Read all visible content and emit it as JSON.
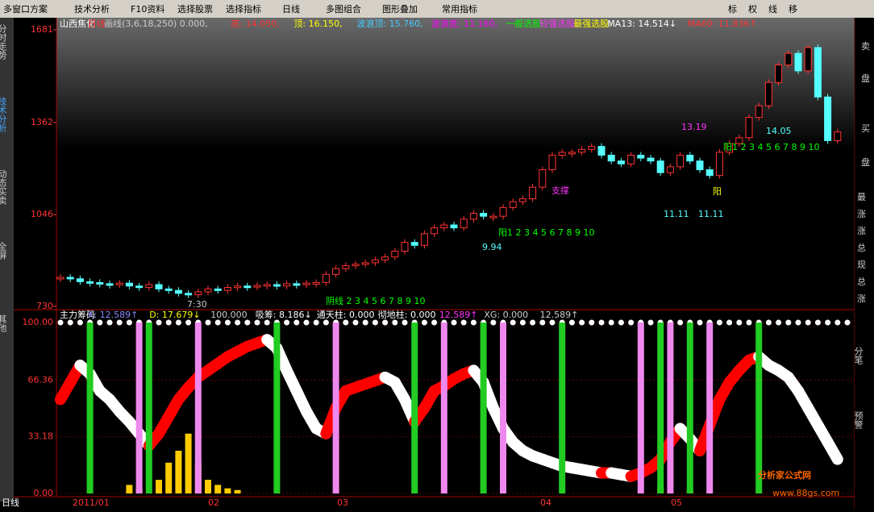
{
  "toolbar": {
    "left": [
      "多窗口方案",
      "技术分析",
      "F10资料",
      "选择股票",
      "选择指标",
      "日线",
      "多图组合",
      "图形叠加",
      "常用指标"
    ],
    "right": [
      "标",
      "权",
      "线",
      "移"
    ]
  },
  "left_tabs": [
    "分时走势",
    "技术分析",
    "动态买卖",
    "全屏",
    "其他"
  ],
  "right_panel": {
    "top": [
      "卖",
      "盘",
      "买",
      "盘"
    ],
    "stats": [
      "最",
      "涨",
      "涨",
      "总",
      "现",
      "总",
      "涨"
    ],
    "tabs": [
      "分笔",
      "预警"
    ]
  },
  "info": [
    "山西焦化",
    "日线",
    "画线(3,6,18,250) 0.000,",
    "底: 14.050,",
    "顶: 16.150,",
    "波浪顶: 15.760,",
    "波浪底: 11.160,",
    "一般选股:",
    "较强选股:",
    "最强选股:",
    "MA13: 14.514↓",
    "MA60: 11.836↑"
  ],
  "price_chart": {
    "ylim": [
      730,
      1681
    ],
    "yticks": [
      1681,
      1362,
      1046,
      730
    ],
    "closes": [
      830,
      825,
      815,
      812,
      808,
      805,
      810,
      800,
      795,
      805,
      790,
      785,
      775,
      770,
      780,
      790,
      785,
      795,
      800,
      798,
      802,
      805,
      800,
      808,
      806,
      810,
      812,
      840,
      860,
      870,
      875,
      880,
      890,
      900,
      920,
      950,
      940,
      980,
      1000,
      1010,
      1000,
      1030,
      1050,
      1040,
      1040,
      1070,
      1090,
      1100,
      1140,
      1200,
      1250,
      1260,
      1260,
      1270,
      1280,
      1250,
      1230,
      1220,
      1250,
      1240,
      1230,
      1190,
      1210,
      1250,
      1230,
      1200,
      1180,
      1260,
      1290,
      1310,
      1380,
      1420,
      1500,
      1560,
      1600,
      1540,
      1620,
      1450,
      1300,
      1330
    ],
    "annotations": [
      "13.19",
      "14.05",
      "11.11",
      "11.11",
      "9.94",
      "支撑",
      "阳1 2 3 4 5 6 7 8 9 10",
      "阳1 2 3 4 5 6 7 8 9 10",
      "阳",
      "阴线 2 3 4 5 6 7 8 9 10",
      "7:30"
    ]
  },
  "indicator": {
    "labels": [
      "主力筹码",
      "K: 12.589↑",
      "D: 17.679↓",
      "100.000",
      "吸筹: 8.186↓",
      "通天柱: 0.000",
      "彻地柱: 0.000",
      "12.589↑",
      "XG: 0.000",
      "12.589↑"
    ],
    "ylim": [
      0,
      100
    ],
    "yticks": [
      {
        "value": 100,
        "label": "100.00"
      },
      {
        "value": 66.36,
        "label": "66.36"
      },
      {
        "value": 33.18,
        "label": "33.18"
      },
      {
        "value": 0,
        "label": "0.00"
      }
    ],
    "ribbon": [
      55,
      65,
      75,
      70,
      60,
      55,
      48,
      42,
      35,
      28,
      35,
      45,
      55,
      62,
      68,
      72,
      76,
      80,
      83,
      86,
      88,
      90,
      85,
      72,
      60,
      48,
      38,
      35,
      50,
      60,
      62,
      64,
      66,
      68,
      65,
      55,
      42,
      50,
      60,
      63,
      67,
      70,
      72,
      65,
      50,
      38,
      30,
      25,
      22,
      20,
      18,
      16,
      15,
      14,
      13,
      12,
      12,
      11,
      10,
      12,
      15,
      20,
      30,
      38,
      32,
      25,
      40,
      55,
      65,
      72,
      78,
      80,
      75,
      72,
      68,
      60,
      50,
      40,
      30,
      20
    ],
    "yellow": [
      0,
      0,
      0,
      0,
      0,
      0,
      0,
      5,
      3,
      0,
      8,
      18,
      25,
      35,
      18,
      8,
      5,
      3,
      2,
      0,
      0,
      0,
      0,
      0,
      0,
      0,
      0,
      0,
      0,
      0,
      0,
      0,
      0,
      0,
      0,
      0,
      0,
      0,
      0,
      0,
      0,
      0,
      0,
      0,
      0,
      0,
      0,
      0,
      0,
      0,
      0,
      0,
      0,
      0,
      0,
      0,
      0,
      0,
      0,
      0,
      0,
      4,
      0,
      0,
      2,
      0,
      0,
      0,
      0,
      0,
      0,
      0,
      0,
      0,
      0,
      0,
      0,
      0,
      0,
      0
    ],
    "green_signals": [
      3,
      9,
      22,
      36,
      43,
      51,
      61,
      64,
      71
    ],
    "pink_signals": [
      8,
      14,
      28,
      39,
      45,
      59,
      62,
      66
    ]
  },
  "dates": [
    "日线",
    "2011/01",
    "02",
    "03",
    "04",
    "05"
  ],
  "watermark": [
    "分析家公式网",
    "www.88gs.com"
  ]
}
